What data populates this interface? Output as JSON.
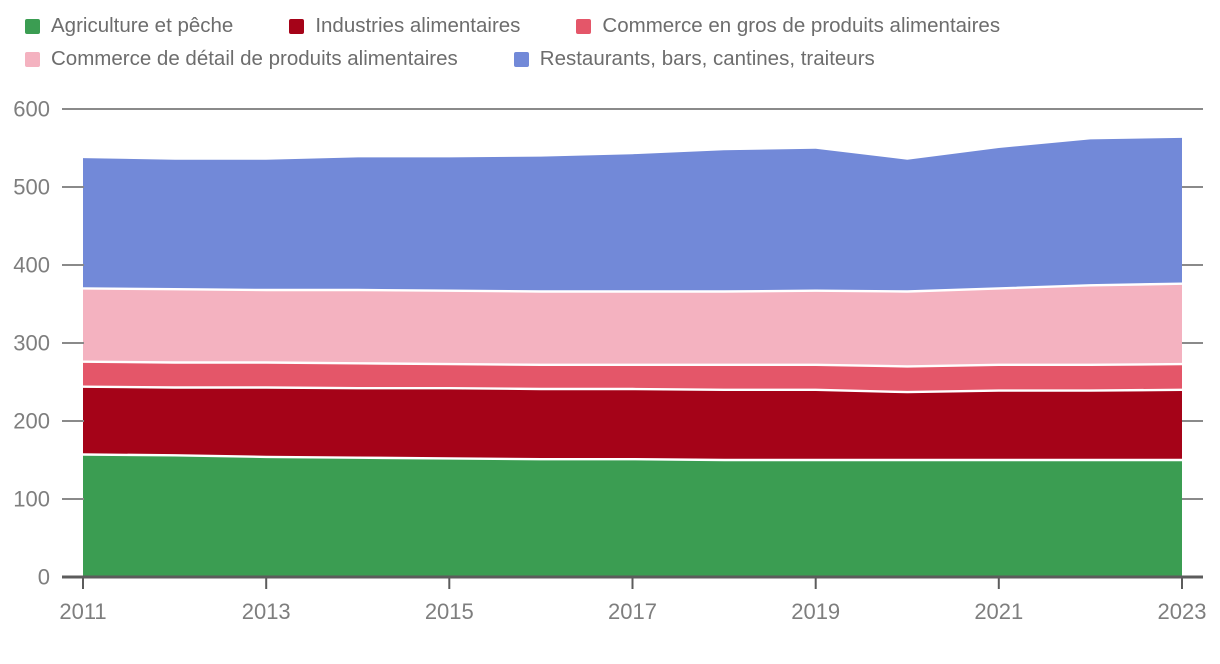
{
  "chart_data": {
    "type": "area",
    "stacked": true,
    "title": "",
    "xlabel": "",
    "ylabel": "",
    "x": [
      2011,
      2012,
      2013,
      2014,
      2015,
      2016,
      2017,
      2018,
      2019,
      2020,
      2021,
      2022,
      2023
    ],
    "xticks": [
      2011,
      2013,
      2015,
      2017,
      2019,
      2021,
      2023
    ],
    "ylim": [
      0,
      600
    ],
    "yticks": [
      0,
      100,
      200,
      300,
      400,
      500,
      600
    ],
    "grid": "top-line-only",
    "legend_position": "top",
    "series": [
      {
        "name": "Agriculture et pêche",
        "color": "#3b9d52",
        "values": [
          157,
          156,
          154,
          153,
          152,
          151,
          151,
          150,
          150,
          150,
          150,
          150,
          150
        ]
      },
      {
        "name": "Industries alimentaires",
        "color": "#a50318",
        "values": [
          87,
          87,
          89,
          89,
          90,
          90,
          90,
          90,
          90,
          87,
          89,
          89,
          90
        ]
      },
      {
        "name": "Commerce en gros de produits alimentaires",
        "color": "#e45669",
        "values": [
          32,
          32,
          32,
          32,
          31,
          31,
          31,
          32,
          32,
          33,
          33,
          33,
          33
        ]
      },
      {
        "name": "Commerce de détail de produits alimentaires",
        "color": "#f4b2c0",
        "values": [
          94,
          94,
          93,
          94,
          94,
          94,
          94,
          94,
          95,
          96,
          98,
          102,
          103
        ]
      },
      {
        "name": "Restaurants, bars, cantines, traiteurs",
        "color": "#7289d8",
        "values": [
          167,
          166,
          167,
          170,
          171,
          173,
          176,
          181,
          182,
          169,
          180,
          187,
          187
        ]
      }
    ]
  },
  "style": {
    "legend_text_color": "#6d6d6d",
    "axis_text_color": "#7e7e7e",
    "tick_line_color": "#8a8a8a",
    "axis_line_color": "#5c5c5c",
    "separator_color": "#ffffff"
  }
}
